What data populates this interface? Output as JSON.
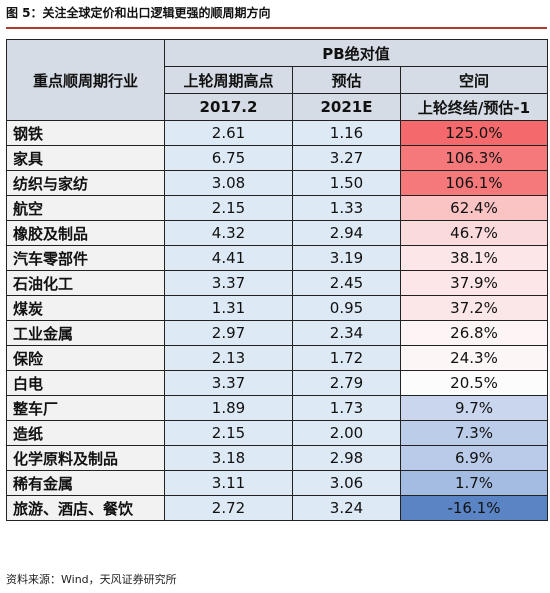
{
  "figure": {
    "title": "图 5：关注全球定价和出口逻辑更强的顺周期方向",
    "source": "资料来源：Wind，天风证券研究所"
  },
  "table": {
    "industry_header": "重点顺周期行业",
    "group_header": "PB绝对值",
    "col_headers": [
      "上轮周期高点",
      "预估",
      "空间"
    ],
    "col_subheaders": [
      "2017.2",
      "2021E",
      "上轮终结/预估-1"
    ],
    "rows": [
      {
        "name": "钢铁",
        "pb_2017": "2.61",
        "pb_2021": "1.16",
        "space": "125.0%",
        "color": "#f4696b"
      },
      {
        "name": "家具",
        "pb_2017": "6.75",
        "pb_2021": "3.27",
        "space": "106.3%",
        "color": "#f5787a"
      },
      {
        "name": "纺织与家纺",
        "pb_2017": "3.08",
        "pb_2021": "1.50",
        "space": "106.1%",
        "color": "#f5797b"
      },
      {
        "name": "航空",
        "pb_2017": "2.15",
        "pb_2021": "1.33",
        "space": "62.4%",
        "color": "#fac3c4"
      },
      {
        "name": "橡胶及制品",
        "pb_2017": "4.32",
        "pb_2021": "2.94",
        "space": "46.7%",
        "color": "#fbdadb"
      },
      {
        "name": "汽车零部件",
        "pb_2017": "4.41",
        "pb_2021": "3.19",
        "space": "38.1%",
        "color": "#fce6e7"
      },
      {
        "name": "石油化工",
        "pb_2017": "3.37",
        "pb_2021": "2.45",
        "space": "37.9%",
        "color": "#fce6e7"
      },
      {
        "name": "煤炭",
        "pb_2017": "1.31",
        "pb_2021": "0.95",
        "space": "37.2%",
        "color": "#fce7e8"
      },
      {
        "name": "工业金属",
        "pb_2017": "2.97",
        "pb_2021": "2.34",
        "space": "26.8%",
        "color": "#fcf4f5"
      },
      {
        "name": "保险",
        "pb_2017": "2.13",
        "pb_2021": "1.72",
        "space": "24.3%",
        "color": "#fcf6f7"
      },
      {
        "name": "白电",
        "pb_2017": "3.37",
        "pb_2021": "2.79",
        "space": "20.5%",
        "color": "#fcfcfd"
      },
      {
        "name": "整车厂",
        "pb_2017": "1.89",
        "pb_2021": "1.73",
        "space": "9.7%",
        "color": "#c9d6ee"
      },
      {
        "name": "造纸",
        "pb_2017": "2.15",
        "pb_2021": "2.00",
        "space": "7.3%",
        "color": "#bccdea"
      },
      {
        "name": "化学原料及制品",
        "pb_2017": "3.18",
        "pb_2021": "2.98",
        "space": "6.9%",
        "color": "#bacbe9"
      },
      {
        "name": "稀有金属",
        "pb_2017": "3.11",
        "pb_2021": "3.06",
        "space": "1.7%",
        "color": "#a5bce2"
      },
      {
        "name": "旅游、酒店、餐饮",
        "pb_2017": "2.72",
        "pb_2021": "3.24",
        "space": "-16.1%",
        "color": "#5b84c4"
      }
    ]
  }
}
